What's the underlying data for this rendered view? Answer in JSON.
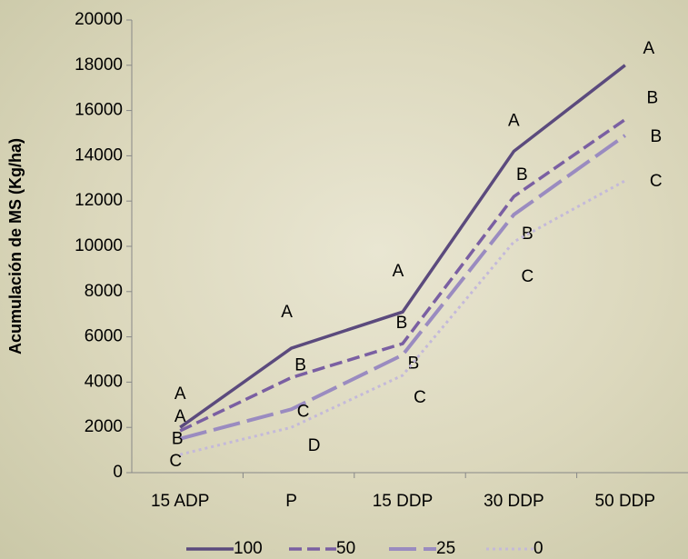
{
  "chart_data": {
    "type": "line",
    "y_label": "Acumulación de MS (Kg/ha)",
    "categories": [
      "15 ADP",
      "P",
      "15 DDP",
      "30 DDP",
      "50 DDP"
    ],
    "series": [
      {
        "name": "100",
        "color": "#5b4a7d",
        "dash": "solid",
        "values": [
          2000,
          5500,
          7100,
          14200,
          18000
        ],
        "letters": [
          "A",
          "A",
          "A",
          "A",
          "A"
        ]
      },
      {
        "name": "50",
        "color": "#7a5fa2",
        "dash": "dashed",
        "values": [
          1850,
          4200,
          5700,
          12200,
          15600
        ],
        "letters": [
          "A",
          "B",
          "B",
          "B",
          "B"
        ]
      },
      {
        "name": "25",
        "color": "#9a8bc0",
        "dash": "longdash",
        "values": [
          1500,
          2800,
          5200,
          11400,
          14900
        ],
        "letters": [
          "B",
          "C",
          "B",
          "B",
          "B"
        ]
      },
      {
        "name": "0",
        "color": "#c4b9da",
        "dash": "dotted",
        "values": [
          800,
          2000,
          4300,
          10200,
          12900
        ],
        "letters": [
          "C",
          "D",
          "C",
          "C",
          "C"
        ]
      }
    ],
    "ylim": [
      0,
      20000
    ],
    "yticks": [
      0,
      2000,
      4000,
      6000,
      8000,
      10000,
      12000,
      14000,
      16000,
      18000,
      20000
    ],
    "legend": "bottom"
  }
}
